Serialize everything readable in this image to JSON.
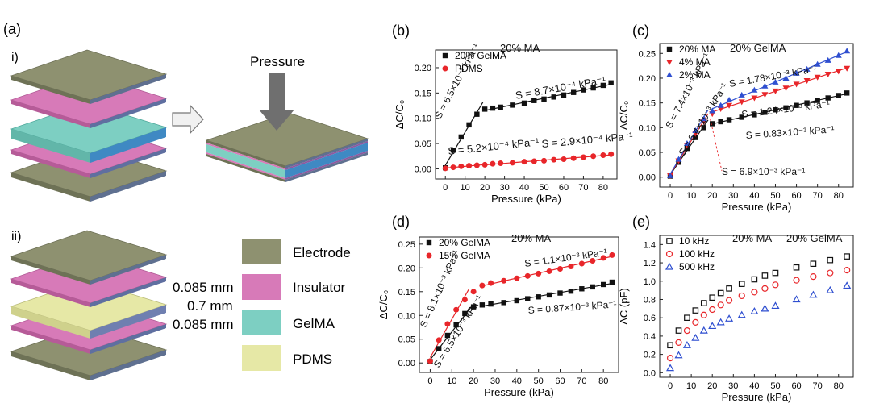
{
  "panel_a": {
    "label": "(a)",
    "sub_i": "i)",
    "sub_ii": "ii)",
    "pressure_label": "Pressure",
    "thickness_labels": [
      "0.085 mm",
      "0.7 mm",
      "0.085 mm"
    ],
    "legend": [
      {
        "name": "Electrode",
        "color": "#8e9170"
      },
      {
        "name": "Insulator",
        "color": "#d77ab8"
      },
      {
        "name": "GelMA",
        "color": "#7dcfc2"
      },
      {
        "name": "PDMS",
        "color": "#e6e8a6"
      }
    ]
  },
  "chart_data": [
    {
      "panel": "(b)",
      "type": "scatter",
      "xlabel": "Pressure (kPa)",
      "ylabel": "ΔC/C₀",
      "xlim": [
        -5,
        87
      ],
      "ylim": [
        -0.02,
        0.235
      ],
      "xticks": [
        "0",
        "10",
        "20",
        "30",
        "40",
        "50",
        "60",
        "70",
        "80"
      ],
      "yticks": [
        "0.00",
        "0.05",
        "0.10",
        "0.15",
        "0.20"
      ],
      "series": [
        {
          "name": "20% GelMA",
          "marker": "square-filled",
          "color": "#111111",
          "x": [
            0,
            4,
            8,
            12,
            16,
            20,
            24,
            28,
            34,
            40,
            45,
            50,
            55,
            60,
            65,
            70,
            75,
            80,
            84
          ],
          "y": [
            0.002,
            0.037,
            0.063,
            0.087,
            0.108,
            0.118,
            0.12,
            0.122,
            0.126,
            0.13,
            0.135,
            0.138,
            0.142,
            0.146,
            0.151,
            0.156,
            0.16,
            0.165,
            0.17
          ]
        },
        {
          "name": "PDMS",
          "marker": "circle-filled",
          "color": "#e8262a",
          "x": [
            0,
            4,
            8,
            12,
            16,
            20,
            24,
            28,
            34,
            40,
            45,
            50,
            55,
            60,
            65,
            70,
            75,
            80,
            84
          ],
          "y": [
            0.001,
            0.003,
            0.005,
            0.006,
            0.007,
            0.008,
            0.01,
            0.011,
            0.012,
            0.014,
            0.015,
            0.016,
            0.018,
            0.019,
            0.021,
            0.023,
            0.025,
            0.027,
            0.029
          ]
        }
      ],
      "annotations": [
        "20% MA",
        "S = 6.5×10⁻³ kPa⁻¹",
        "S = 8.7×10⁻⁴ kPa⁻¹",
        "S = 5.2×10⁻⁴ kPa⁻¹",
        "S = 2.9×10⁻⁴ kPa⁻¹"
      ],
      "legend_position": "top-left"
    },
    {
      "panel": "(c)",
      "type": "scatter",
      "xlabel": "Pressure (kPa)",
      "ylabel": "ΔC/C₀",
      "xlim": [
        -5,
        87
      ],
      "ylim": [
        -0.02,
        0.27
      ],
      "xticks": [
        "0",
        "10",
        "20",
        "30",
        "40",
        "50",
        "60",
        "70",
        "80"
      ],
      "yticks": [
        "0.00",
        "0.05",
        "0.10",
        "0.15",
        "0.20",
        "0.25"
      ],
      "series": [
        {
          "name": "20% MA",
          "marker": "square-filled",
          "color": "#111111",
          "x": [
            0,
            4,
            8,
            12,
            16,
            20,
            24,
            28,
            34,
            40,
            45,
            50,
            55,
            60,
            65,
            70,
            75,
            80,
            84
          ],
          "y": [
            0.002,
            0.03,
            0.058,
            0.08,
            0.1,
            0.108,
            0.112,
            0.116,
            0.121,
            0.126,
            0.131,
            0.136,
            0.14,
            0.145,
            0.15,
            0.155,
            0.16,
            0.165,
            0.17
          ]
        },
        {
          "name": "4% MA",
          "marker": "triangle-down",
          "color": "#e8262a",
          "x": [
            0,
            4,
            8,
            12,
            16,
            20,
            24,
            28,
            34,
            40,
            45,
            50,
            55,
            60,
            65,
            70,
            75,
            80,
            84
          ],
          "y": [
            0.003,
            0.033,
            0.064,
            0.088,
            0.112,
            0.128,
            0.138,
            0.145,
            0.152,
            0.16,
            0.167,
            0.174,
            0.18,
            0.188,
            0.195,
            0.202,
            0.208,
            0.214,
            0.22
          ]
        },
        {
          "name": "2% MA",
          "marker": "triangle-up",
          "color": "#2f4fd0",
          "x": [
            0,
            4,
            8,
            12,
            16,
            20,
            24,
            28,
            34,
            40,
            45,
            50,
            55,
            60,
            65,
            70,
            75,
            80,
            84
          ],
          "y": [
            0.003,
            0.036,
            0.068,
            0.094,
            0.118,
            0.134,
            0.145,
            0.156,
            0.166,
            0.176,
            0.184,
            0.192,
            0.2,
            0.21,
            0.218,
            0.228,
            0.236,
            0.246,
            0.255
          ]
        }
      ],
      "annotations": [
        "20% GelMA",
        "S = 7.4×10⁻³ kPa⁻¹",
        "S = 6.4×10⁻³ kPa⁻¹",
        "S = 6.9×10⁻³ kPa⁻¹",
        "S = 1.78×10⁻³ kPa⁻¹",
        "S = 1.24×10⁻³ kPa⁻¹",
        "S = 0.83×10⁻³ kPa⁻¹"
      ],
      "legend_position": "top-left"
    },
    {
      "panel": "(d)",
      "type": "scatter",
      "xlabel": "Pressure (kPa)",
      "ylabel": "ΔC/C₀",
      "xlim": [
        -5,
        87
      ],
      "ylim": [
        -0.02,
        0.265
      ],
      "xticks": [
        "0",
        "10",
        "20",
        "30",
        "40",
        "50",
        "60",
        "70",
        "80"
      ],
      "yticks": [
        "0.00",
        "0.05",
        "0.10",
        "0.15",
        "0.20",
        "0.25"
      ],
      "series": [
        {
          "name": "20% GelMA",
          "marker": "square-filled",
          "color": "#111111",
          "x": [
            0,
            4,
            8,
            12,
            16,
            20,
            24,
            28,
            34,
            40,
            45,
            50,
            55,
            60,
            65,
            70,
            75,
            80,
            84
          ],
          "y": [
            0.003,
            0.03,
            0.058,
            0.08,
            0.104,
            0.118,
            0.122,
            0.124,
            0.127,
            0.131,
            0.135,
            0.139,
            0.143,
            0.147,
            0.151,
            0.156,
            0.16,
            0.165,
            0.17
          ]
        },
        {
          "name": "15% GelMA",
          "marker": "circle-filled",
          "color": "#e8262a",
          "x": [
            0,
            4,
            8,
            12,
            16,
            20,
            24,
            28,
            34,
            40,
            45,
            50,
            55,
            60,
            65,
            70,
            75,
            80,
            84
          ],
          "y": [
            0.004,
            0.048,
            0.082,
            0.112,
            0.133,
            0.15,
            0.163,
            0.168,
            0.173,
            0.178,
            0.183,
            0.188,
            0.193,
            0.198,
            0.203,
            0.209,
            0.215,
            0.221,
            0.227
          ]
        }
      ],
      "annotations": [
        "20% MA",
        "S = 8.1×10⁻³ kPa⁻¹",
        "S = 6.5×10⁻³ kPa⁻¹",
        "S = 1.1×10⁻³ kPa⁻¹",
        "S = 0.87×10⁻³ kPa⁻¹"
      ],
      "legend_position": "top-left"
    },
    {
      "panel": "(e)",
      "type": "scatter",
      "xlabel": "Pressure (kPa)",
      "ylabel": "ΔC (pF)",
      "xlim": [
        -5,
        87
      ],
      "ylim": [
        -0.05,
        1.5
      ],
      "xticks": [
        "0",
        "10",
        "20",
        "30",
        "40",
        "50",
        "60",
        "70",
        "80"
      ],
      "yticks": [
        "0.0",
        "0.2",
        "0.4",
        "0.6",
        "0.8",
        "1.0",
        "1.2",
        "1.4"
      ],
      "series": [
        {
          "name": "10 kHz",
          "marker": "square-open",
          "color": "#111111",
          "x": [
            0,
            4,
            8,
            12,
            16,
            20,
            24,
            28,
            34,
            40,
            45,
            50,
            60,
            68,
            76,
            84
          ],
          "y": [
            0.3,
            0.46,
            0.6,
            0.68,
            0.76,
            0.82,
            0.87,
            0.92,
            0.97,
            1.02,
            1.06,
            1.09,
            1.15,
            1.19,
            1.23,
            1.27
          ]
        },
        {
          "name": "100 kHz",
          "marker": "circle-open",
          "color": "#e8262a",
          "x": [
            0,
            4,
            8,
            12,
            16,
            20,
            24,
            28,
            34,
            40,
            45,
            50,
            60,
            68,
            76,
            84
          ],
          "y": [
            0.16,
            0.33,
            0.46,
            0.55,
            0.63,
            0.69,
            0.74,
            0.79,
            0.84,
            0.88,
            0.92,
            0.96,
            1.01,
            1.05,
            1.09,
            1.12
          ]
        },
        {
          "name": "500 kHz",
          "marker": "triangle-open",
          "color": "#2f4fd0",
          "x": [
            0,
            4,
            8,
            12,
            16,
            20,
            24,
            28,
            34,
            40,
            45,
            50,
            60,
            68,
            76,
            84
          ],
          "y": [
            0.05,
            0.19,
            0.3,
            0.38,
            0.46,
            0.51,
            0.55,
            0.59,
            0.63,
            0.67,
            0.7,
            0.73,
            0.8,
            0.85,
            0.9,
            0.95
          ]
        }
      ],
      "annotations": [
        "20% MA",
        "20% GelMA"
      ],
      "legend_position": "top-left"
    }
  ]
}
